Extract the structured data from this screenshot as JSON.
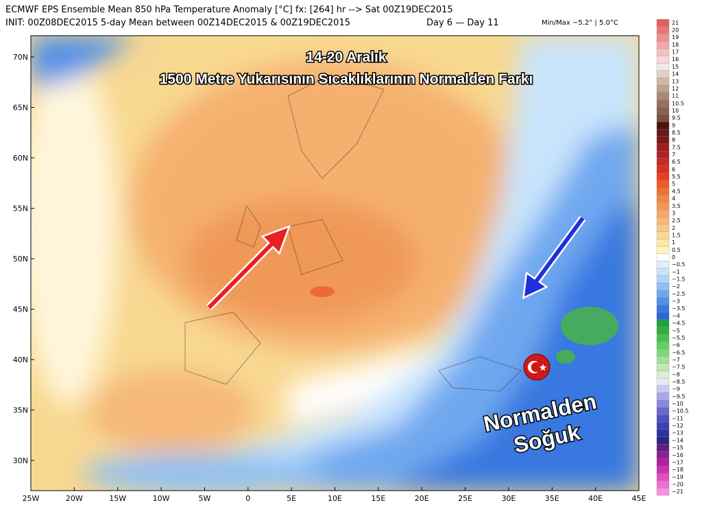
{
  "header": {
    "line1": "ECMWF EPS Ensemble Mean 850 hPa Temperature Anomaly [°C] fx: [264] hr --> Sat 00Z19DEC2015",
    "line2": "INIT: 00Z08DEC2015 5-day Mean between 00Z14DEC2015 & 00Z19DEC2015",
    "days": "Day 6 — Day 11",
    "minmax": "Min/Max −5.2° |  5.0°C"
  },
  "overlay": {
    "title": "14-20 Aralık",
    "subtitle": "1500 Metre Yukarısının Sıcaklıklarının Normalden Farkı",
    "label_line1": "Normalden",
    "label_line2": "Soğuk"
  },
  "map": {
    "lon_labels": [
      "25W",
      "20W",
      "15W",
      "10W",
      "5W",
      "0",
      "5E",
      "10E",
      "15E",
      "20E",
      "25E",
      "30E",
      "35E",
      "40E",
      "45E"
    ],
    "lat_labels": [
      "70N",
      "65N",
      "60N",
      "55N",
      "50N",
      "45N",
      "40N",
      "35N",
      "30N"
    ]
  },
  "colorbar": {
    "labels": [
      "21",
      "20",
      "19",
      "18",
      "17",
      "16",
      "15",
      "14",
      "13",
      "12",
      "11",
      "10.5",
      "10",
      "9.5",
      "9",
      "8.5",
      "8",
      "7.5",
      "7",
      "6.5",
      "6",
      "5.5",
      "5",
      "4.5",
      "4",
      "3.5",
      "3",
      "2.5",
      "2",
      "1.5",
      "1",
      "0.5",
      "0",
      "−0.5",
      "−1",
      "−1.5",
      "−2",
      "−2.5",
      "−3",
      "−3.5",
      "−4",
      "−4.5",
      "−5",
      "−5.5",
      "−6",
      "−6.5",
      "−7",
      "−7.5",
      "−8",
      "−8.5",
      "−9",
      "−9.5",
      "−10",
      "−10.5",
      "−11",
      "−12",
      "−13",
      "−14",
      "−15",
      "−16",
      "−17",
      "−18",
      "−19",
      "−20",
      "−21"
    ],
    "colors": [
      "#e06060",
      "#e87878",
      "#f09090",
      "#f0a8a8",
      "#f5c0c0",
      "#f8d8d8",
      "#f0e8e8",
      "#e0d0c8",
      "#d0b8a8",
      "#c0a090",
      "#a88878",
      "#987060",
      "#886050",
      "#785040",
      "#501010",
      "#681818",
      "#801818",
      "#982020",
      "#b02020",
      "#c82828",
      "#d83020",
      "#e84020",
      "#f05828",
      "#f07038",
      "#f08848",
      "#f09858",
      "#f5a868",
      "#f8b878",
      "#f8c888",
      "#fad898",
      "#fce8a8",
      "#fff4c0",
      "#ffffff",
      "#e0f0ff",
      "#c8e4fc",
      "#b0d4f8",
      "#90c0f4",
      "#70a8f0",
      "#5090e8",
      "#3878e0",
      "#2868d8",
      "#20a040",
      "#30b040",
      "#48c050",
      "#60d060",
      "#80d878",
      "#a0e098",
      "#c0e8b8",
      "#d8f0d0",
      "#e8e8f8",
      "#c8c8f0",
      "#a8a8e8",
      "#8888e0",
      "#6868d0",
      "#5050c0",
      "#4040b0",
      "#3030a0",
      "#282880",
      "#602080",
      "#902090",
      "#b020a0",
      "#d030b0",
      "#e050c0",
      "#f070d0",
      "#f890e0"
    ]
  }
}
